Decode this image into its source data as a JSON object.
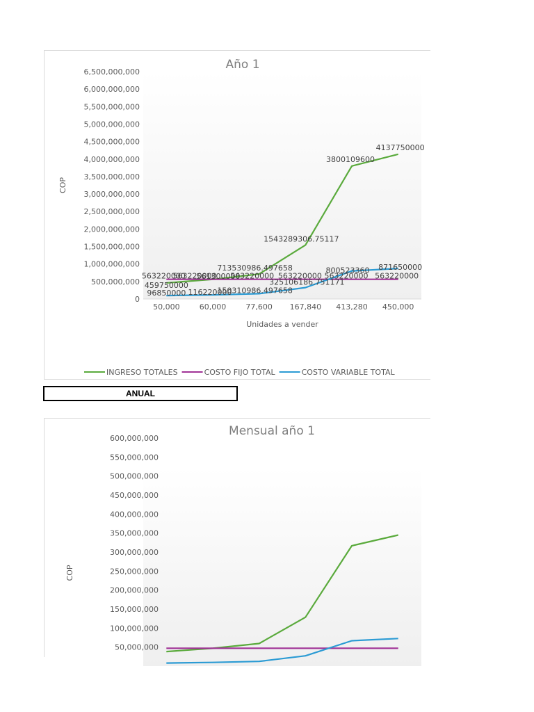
{
  "caption": "ANUAL",
  "colors": {
    "ingreso": "#5aaa3c",
    "costo_fijo": "#a03296",
    "costo_variable": "#2b9bd4"
  },
  "chart_data": [
    {
      "type": "line",
      "title": "Año 1",
      "xlabel": "Unidades a vender",
      "ylabel": "COP",
      "categories": [
        "50,000",
        "60,000",
        "77,600",
        "167,840",
        "413,280",
        "450,000"
      ],
      "y_ticks": [
        "0",
        "500,000,000",
        "1,000,000,000",
        "1,500,000,000",
        "2,000,000,000",
        "2,500,000,000",
        "3,000,000,000",
        "3,500,000,000",
        "4,000,000,000",
        "4,500,000,000",
        "5,000,000,000",
        "5,500,000,000",
        "6,000,000,000",
        "6,500,000,000"
      ],
      "ylim": [
        0,
        6500000000
      ],
      "legend_position": "bottom",
      "series": [
        {
          "name": "INGRESO TOTALES",
          "color_key": "ingreso",
          "values": [
            459750000,
            561300000,
            713530986.497658,
            1543289306.75117,
            3800109600,
            4137750000
          ],
          "labels": [
            "459750000",
            "561300000",
            "713530986.497658",
            "1543289306.75117",
            "3800109600",
            "4137750000"
          ]
        },
        {
          "name": "COSTO FIJO TOTAL",
          "color_key": "costo_fijo",
          "values": [
            563220000,
            563220000,
            563220000,
            563220000,
            563220000,
            563220000
          ],
          "labels": [
            "563220000",
            "563220000",
            "563220000",
            "563220000",
            "563220000",
            "563220000"
          ]
        },
        {
          "name": "COSTO VARIABLE TOTAL",
          "color_key": "costo_variable",
          "values": [
            96850000,
            116220000,
            150310986.497658,
            325106186.751171,
            800523360,
            871650000
          ],
          "labels": [
            "96850000",
            "116220000",
            "150310986.497658",
            "325106186.751171",
            "800523360",
            "871650000"
          ]
        }
      ]
    },
    {
      "type": "line",
      "title": "Mensual año 1",
      "ylabel": "COP",
      "y_ticks": [
        "50,000,000",
        "100,000,000",
        "150,000,000",
        "200,000,000",
        "250,000,000",
        "300,000,000",
        "350,000,000",
        "400,000,000",
        "450,000,000",
        "500,000,000",
        "550,000,000",
        "600,000,000"
      ],
      "ylim": [
        0,
        600000000
      ],
      "series": [
        {
          "color_key": "ingreso",
          "values": [
            38312500,
            46775000,
            59460916,
            128607442,
            316675800,
            344812500
          ]
        },
        {
          "color_key": "costo_fijo",
          "values": [
            46935000,
            46935000,
            46935000,
            46935000,
            46935000,
            46935000
          ]
        },
        {
          "color_key": "costo_variable",
          "values": [
            8070833,
            9685000,
            12525916,
            27092182,
            66710280,
            72637500
          ]
        }
      ]
    }
  ]
}
